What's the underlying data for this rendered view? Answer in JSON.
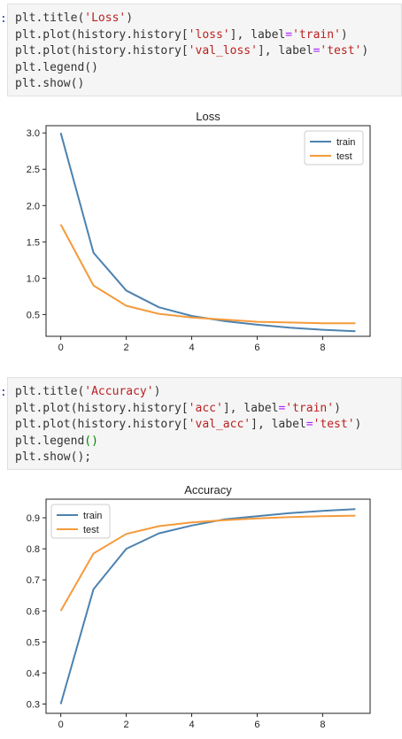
{
  "cells": [
    {
      "prompt": ":",
      "lines": [
        [
          {
            "t": "plt.title("
          },
          {
            "t": "'Loss'",
            "c": "str"
          },
          {
            "t": ")"
          }
        ],
        [
          {
            "t": "plt.plot(history.history["
          },
          {
            "t": "'loss'",
            "c": "str"
          },
          {
            "t": "], label"
          },
          {
            "t": "=",
            "c": "op"
          },
          {
            "t": "'train'",
            "c": "str"
          },
          {
            "t": ")"
          }
        ],
        [
          {
            "t": "plt.plot(history.history["
          },
          {
            "t": "'val_loss'",
            "c": "str"
          },
          {
            "t": "], label"
          },
          {
            "t": "=",
            "c": "op"
          },
          {
            "t": "'test'",
            "c": "str"
          },
          {
            "t": ")"
          }
        ],
        [
          {
            "t": "plt.legend()"
          }
        ],
        [
          {
            "t": "plt.show()"
          }
        ]
      ]
    },
    {
      "prompt": ":",
      "lines": [
        [
          {
            "t": "plt.title("
          },
          {
            "t": "'Accuracy'",
            "c": "str"
          },
          {
            "t": ")"
          }
        ],
        [
          {
            "t": "plt.plot(history.history["
          },
          {
            "t": "'acc'",
            "c": "str"
          },
          {
            "t": "], label"
          },
          {
            "t": "=",
            "c": "op"
          },
          {
            "t": "'train'",
            "c": "str"
          },
          {
            "t": ")"
          }
        ],
        [
          {
            "t": "plt.plot(history.history["
          },
          {
            "t": "'val_acc'",
            "c": "str"
          },
          {
            "t": "], label"
          },
          {
            "t": "=",
            "c": "op"
          },
          {
            "t": "'test'",
            "c": "str"
          },
          {
            "t": ")"
          }
        ],
        [
          {
            "t": "plt.legend"
          },
          {
            "t": "()",
            "c": "br"
          }
        ],
        [
          {
            "t": "plt.show();"
          }
        ]
      ]
    }
  ],
  "chart_data": [
    {
      "type": "line",
      "title": "Loss",
      "x": [
        0,
        1,
        2,
        3,
        4,
        5,
        6,
        7,
        8,
        9
      ],
      "xticks": [
        0,
        2,
        4,
        6,
        8
      ],
      "yticks": [
        0.5,
        1.0,
        1.5,
        2.0,
        2.5,
        3.0
      ],
      "xlim": [
        -0.45,
        9.45
      ],
      "ylim": [
        0.2,
        3.1
      ],
      "legend": "top-right",
      "grid": false,
      "series": [
        {
          "name": "train",
          "color": "#4c82b0",
          "values": [
            3.0,
            1.35,
            0.83,
            0.6,
            0.48,
            0.41,
            0.36,
            0.32,
            0.29,
            0.27
          ]
        },
        {
          "name": "test",
          "color": "#f59b3b",
          "values": [
            1.74,
            0.9,
            0.62,
            0.51,
            0.46,
            0.43,
            0.4,
            0.39,
            0.38,
            0.38
          ]
        }
      ]
    },
    {
      "type": "line",
      "title": "Accuracy",
      "x": [
        0,
        1,
        2,
        3,
        4,
        5,
        6,
        7,
        8,
        9
      ],
      "xticks": [
        0,
        2,
        4,
        6,
        8
      ],
      "yticks": [
        0.3,
        0.4,
        0.5,
        0.6,
        0.7,
        0.8,
        0.9
      ],
      "xlim": [
        -0.45,
        9.45
      ],
      "ylim": [
        0.27,
        0.96
      ],
      "legend": "top-left",
      "grid": false,
      "series": [
        {
          "name": "train",
          "color": "#4c82b0",
          "values": [
            0.3,
            0.67,
            0.8,
            0.85,
            0.875,
            0.895,
            0.905,
            0.915,
            0.922,
            0.928
          ]
        },
        {
          "name": "test",
          "color": "#f59b3b",
          "values": [
            0.6,
            0.785,
            0.848,
            0.873,
            0.885,
            0.892,
            0.898,
            0.902,
            0.905,
            0.907
          ]
        }
      ]
    }
  ]
}
